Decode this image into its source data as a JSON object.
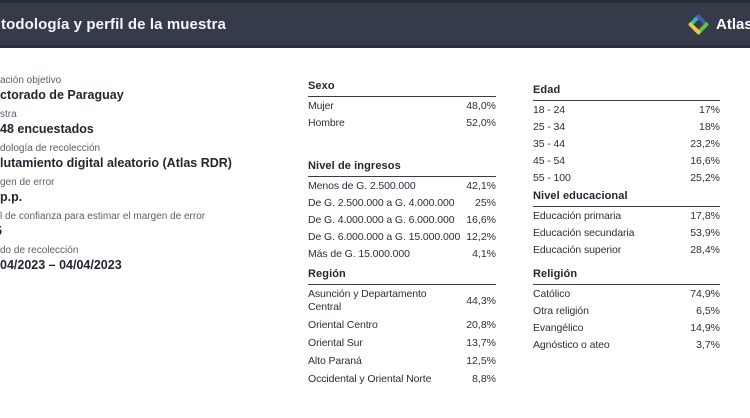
{
  "header": {
    "title": "todología y perfil de la muestra",
    "brand": "AtlasI",
    "bg": "#353B49",
    "edge": "#272C37",
    "logo_icon": "diamond-icon",
    "logo_colors": {
      "top_left": "#2FB7BC",
      "top_right": "#3C63A8",
      "bottom_right": "#69BD45",
      "bottom_left": "#E9C83F"
    }
  },
  "profile": {
    "items": [
      {
        "label": "ación objetivo",
        "value": "ctorado de Paraguay"
      },
      {
        "label": "stra",
        "value": "48 encuestados"
      },
      {
        "label": "dología de recolección",
        "value": "lutamiento digital aleatorio (Atlas RDR)"
      },
      {
        "label": "gen de error",
        "value": "p.p."
      },
      {
        "label": "l de confianza para estimar el margen de error",
        "value": "5"
      },
      {
        "label": "do de recolección",
        "value": "04/2023 – 04/04/2023"
      }
    ]
  },
  "tables": {
    "sexo": {
      "title": "Sexo",
      "rows": [
        [
          "Mujer",
          "48,0%"
        ],
        [
          "Hombre",
          "52,0%"
        ]
      ]
    },
    "ingresos": {
      "title": "Nivel de ingresos",
      "rows": [
        [
          "Menos de G. 2.500.000",
          "42,1%"
        ],
        [
          "De G. 2.500.000 a G. 4.000.000",
          "25%"
        ],
        [
          "De G. 4.000.000 a G. 6.000.000",
          "16,6%"
        ],
        [
          "De G. 6.000.000 a G. 15.000.000",
          "12,2%"
        ],
        [
          "Más de G. 15.000.000",
          "4,1%"
        ]
      ]
    },
    "region": {
      "title": "Región",
      "rows": [
        [
          "Asunción y Departamento Central",
          "44,3%"
        ],
        [
          "Oriental Centro",
          "20,8%"
        ],
        [
          "Oriental Sur",
          "13,7%"
        ],
        [
          "Alto Paraná",
          "12,5%"
        ],
        [
          "Occidental y Oriental Norte",
          "8,8%"
        ]
      ]
    },
    "edad": {
      "title": "Edad",
      "rows": [
        [
          "18 - 24",
          "17%"
        ],
        [
          "25 - 34",
          "18%"
        ],
        [
          "35 - 44",
          "23,2%"
        ],
        [
          "45 - 54",
          "16,6%"
        ],
        [
          "55 - 100",
          "25,2%"
        ]
      ]
    },
    "educacion": {
      "title": "Nivel educacional",
      "rows": [
        [
          "Educación primaria",
          "17,8%"
        ],
        [
          "Educación secundaria",
          "53,9%"
        ],
        [
          "Educación superior",
          "28,4%"
        ]
      ]
    },
    "religion": {
      "title": "Religión",
      "rows": [
        [
          "Católico",
          "74,9%"
        ],
        [
          "Otra religión",
          "6,5%"
        ],
        [
          "Evangélico",
          "14,9%"
        ],
        [
          "Agnóstico o ateo",
          "3,7%"
        ]
      ]
    }
  },
  "colors": {
    "text_dark": "#23272F",
    "label_gray": "#5A6069",
    "rule": "#383E49"
  }
}
